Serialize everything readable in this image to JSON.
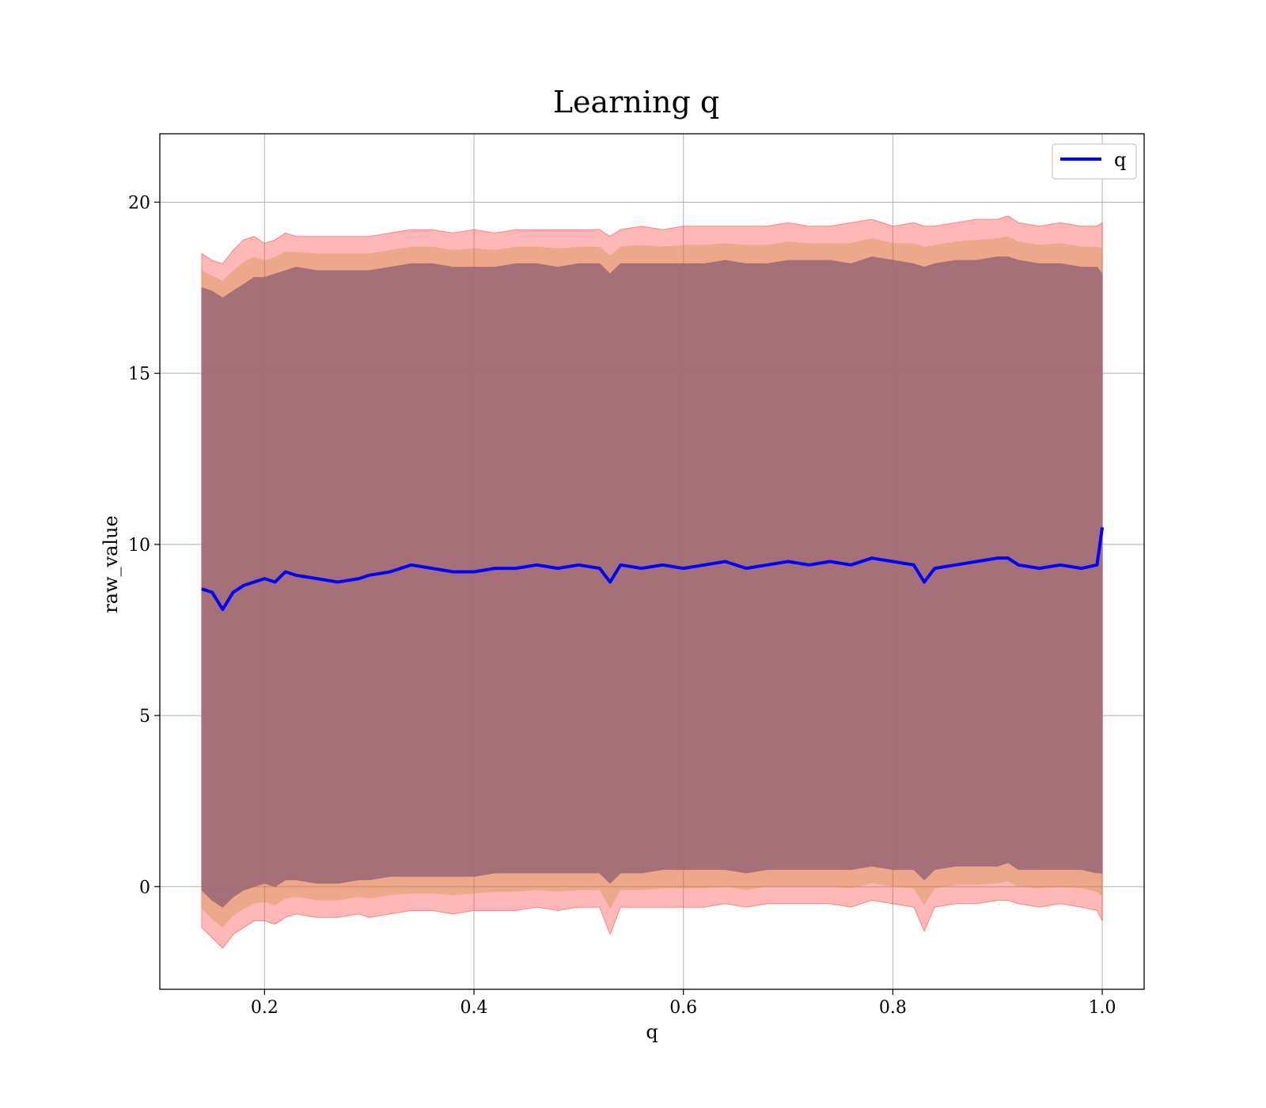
{
  "chart_data": {
    "type": "line",
    "title": "Learning q",
    "xlabel": "q",
    "ylabel": "raw_value",
    "xlim": [
      0.1,
      1.04
    ],
    "ylim": [
      -3,
      22
    ],
    "xticks": [
      0.2,
      0.4,
      0.6,
      0.8,
      1.0
    ],
    "xtick_labels": [
      "0.2",
      "0.4",
      "0.6",
      "0.8",
      "1.0"
    ],
    "yticks": [
      0,
      5,
      10,
      15,
      20
    ],
    "ytick_labels": [
      "0",
      "5",
      "10",
      "15",
      "20"
    ],
    "grid": true,
    "legend_position": "top-right",
    "colors": {
      "line": "#0000ff",
      "band_outer": "#ff3333",
      "band_middle": "#cc8833",
      "band_inner": "#7a3a66",
      "body_fill": "#a27079",
      "grid": "#b0b0b0"
    },
    "series": [
      {
        "name": "q",
        "x": [
          0.14,
          0.15,
          0.16,
          0.17,
          0.18,
          0.19,
          0.2,
          0.21,
          0.22,
          0.23,
          0.25,
          0.27,
          0.29,
          0.3,
          0.32,
          0.34,
          0.36,
          0.38,
          0.4,
          0.42,
          0.44,
          0.46,
          0.48,
          0.5,
          0.52,
          0.53,
          0.54,
          0.56,
          0.58,
          0.6,
          0.62,
          0.64,
          0.66,
          0.68,
          0.7,
          0.72,
          0.74,
          0.76,
          0.78,
          0.8,
          0.82,
          0.83,
          0.84,
          0.86,
          0.88,
          0.9,
          0.91,
          0.92,
          0.94,
          0.96,
          0.98,
          0.995,
          1.0
        ],
        "values": [
          8.7,
          8.6,
          8.1,
          8.6,
          8.8,
          8.9,
          9.0,
          8.9,
          9.2,
          9.1,
          9.0,
          8.9,
          9.0,
          9.1,
          9.2,
          9.4,
          9.3,
          9.2,
          9.2,
          9.3,
          9.3,
          9.4,
          9.3,
          9.4,
          9.3,
          8.9,
          9.4,
          9.3,
          9.4,
          9.3,
          9.4,
          9.5,
          9.3,
          9.4,
          9.5,
          9.4,
          9.5,
          9.4,
          9.6,
          9.5,
          9.4,
          8.9,
          9.3,
          9.4,
          9.5,
          9.6,
          9.6,
          9.4,
          9.3,
          9.4,
          9.3,
          9.4,
          10.5
        ],
        "upper_outer": [
          18.5,
          18.3,
          18.2,
          18.6,
          18.9,
          19.0,
          18.8,
          18.9,
          19.1,
          19.0,
          19.0,
          19.0,
          19.0,
          19.0,
          19.1,
          19.2,
          19.2,
          19.1,
          19.2,
          19.1,
          19.2,
          19.2,
          19.2,
          19.2,
          19.2,
          19.0,
          19.2,
          19.3,
          19.2,
          19.3,
          19.3,
          19.3,
          19.3,
          19.3,
          19.4,
          19.3,
          19.3,
          19.4,
          19.5,
          19.3,
          19.4,
          19.3,
          19.3,
          19.4,
          19.5,
          19.5,
          19.6,
          19.4,
          19.3,
          19.4,
          19.3,
          19.3,
          19.4
        ],
        "upper_inner": [
          17.5,
          17.4,
          17.2,
          17.4,
          17.6,
          17.8,
          17.8,
          17.9,
          18.0,
          18.1,
          18.0,
          18.0,
          18.0,
          18.0,
          18.1,
          18.2,
          18.2,
          18.1,
          18.1,
          18.1,
          18.2,
          18.2,
          18.1,
          18.2,
          18.2,
          17.9,
          18.2,
          18.2,
          18.2,
          18.2,
          18.2,
          18.3,
          18.2,
          18.2,
          18.3,
          18.3,
          18.3,
          18.2,
          18.4,
          18.3,
          18.2,
          18.1,
          18.2,
          18.3,
          18.3,
          18.4,
          18.4,
          18.3,
          18.2,
          18.2,
          18.1,
          18.1,
          17.9
        ],
        "lower_inner": [
          -0.1,
          -0.4,
          -0.6,
          -0.3,
          -0.1,
          0.0,
          0.1,
          0.0,
          0.2,
          0.2,
          0.1,
          0.1,
          0.2,
          0.2,
          0.3,
          0.3,
          0.3,
          0.3,
          0.3,
          0.4,
          0.4,
          0.4,
          0.4,
          0.4,
          0.4,
          0.1,
          0.4,
          0.4,
          0.5,
          0.5,
          0.5,
          0.5,
          0.4,
          0.5,
          0.5,
          0.5,
          0.5,
          0.5,
          0.6,
          0.5,
          0.5,
          0.2,
          0.5,
          0.6,
          0.6,
          0.6,
          0.7,
          0.5,
          0.5,
          0.5,
          0.5,
          0.4,
          0.4
        ],
        "lower_outer": [
          -1.2,
          -1.5,
          -1.8,
          -1.4,
          -1.2,
          -1.0,
          -1.0,
          -1.1,
          -0.9,
          -0.8,
          -0.9,
          -0.9,
          -0.8,
          -0.9,
          -0.8,
          -0.7,
          -0.7,
          -0.8,
          -0.7,
          -0.7,
          -0.7,
          -0.6,
          -0.7,
          -0.6,
          -0.6,
          -1.4,
          -0.6,
          -0.6,
          -0.6,
          -0.6,
          -0.6,
          -0.5,
          -0.6,
          -0.5,
          -0.5,
          -0.5,
          -0.5,
          -0.6,
          -0.4,
          -0.5,
          -0.6,
          -1.3,
          -0.6,
          -0.5,
          -0.5,
          -0.4,
          -0.4,
          -0.5,
          -0.6,
          -0.5,
          -0.6,
          -0.7,
          -1.0
        ]
      }
    ]
  }
}
